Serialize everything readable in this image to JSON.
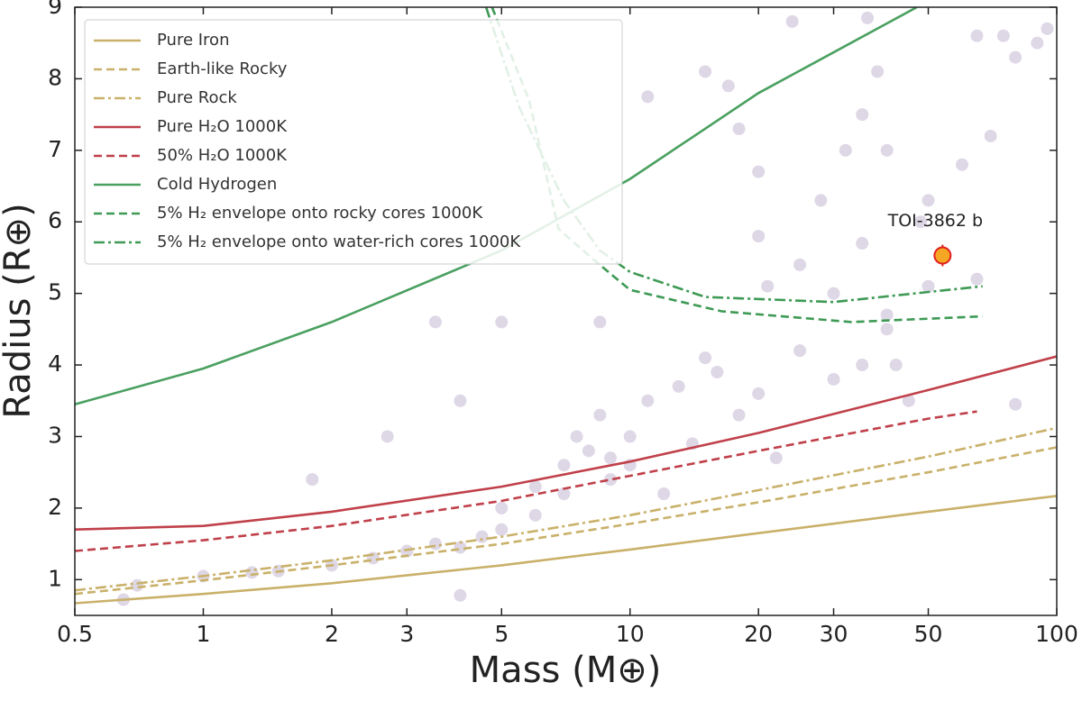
{
  "chart_data": {
    "type": "line",
    "xlabel": "Mass (M⊕)",
    "ylabel": "Radius (R⊕)",
    "xscale": "log",
    "xlim": [
      0.5,
      100
    ],
    "ylim": [
      0.5,
      9
    ],
    "xticks": [
      0.5,
      1,
      2,
      3,
      5,
      10,
      20,
      30,
      50,
      100
    ],
    "yticks": [
      1,
      2,
      3,
      4,
      5,
      6,
      7,
      8,
      9
    ],
    "legend": "upper left",
    "series": [
      {
        "name": "Pure Iron",
        "color": "#c9b16a",
        "style": "solid",
        "x": [
          0.5,
          1,
          2,
          5,
          10,
          20,
          50,
          100
        ],
        "values": [
          0.67,
          0.8,
          0.95,
          1.2,
          1.42,
          1.65,
          1.95,
          2.17
        ]
      },
      {
        "name": "Earth-like Rocky",
        "color": "#c9b16a",
        "style": "dashed",
        "x": [
          0.5,
          1,
          2,
          5,
          10,
          20,
          50,
          100
        ],
        "values": [
          0.8,
          0.99,
          1.2,
          1.5,
          1.78,
          2.08,
          2.5,
          2.85
        ]
      },
      {
        "name": "Pure Rock",
        "color": "#c9b16a",
        "style": "dashdot",
        "x": [
          0.5,
          1,
          2,
          5,
          10,
          20,
          50,
          100
        ],
        "values": [
          0.85,
          1.05,
          1.27,
          1.6,
          1.9,
          2.25,
          2.72,
          3.12
        ]
      },
      {
        "name": "Pure H₂O 1000K",
        "color": "#c0404a",
        "style": "solid",
        "x": [
          0.5,
          1,
          2,
          5,
          10,
          20,
          50,
          100
        ],
        "values": [
          1.7,
          1.75,
          1.95,
          2.3,
          2.65,
          3.05,
          3.65,
          4.12
        ]
      },
      {
        "name": "50% H₂O 1000K",
        "color": "#c0404a",
        "style": "dashed",
        "x": [
          0.5,
          1,
          2,
          5,
          10,
          20,
          50,
          65
        ],
        "values": [
          1.4,
          1.55,
          1.75,
          2.1,
          2.45,
          2.8,
          3.25,
          3.35
        ]
      },
      {
        "name": "Cold Hydrogen",
        "color": "#4aa060",
        "style": "solid",
        "x": [
          0.5,
          1,
          2,
          5,
          10,
          20,
          47
        ],
        "values": [
          3.45,
          3.95,
          4.6,
          5.6,
          6.6,
          7.8,
          9.0
        ]
      },
      {
        "name": "5% H₂ envelope onto rocky cores 1000K",
        "color": "#3e9a55",
        "style": "dashed",
        "x": [
          4.75,
          5.8,
          6.8,
          8.3,
          10,
          16.4,
          33,
          67
        ],
        "values": [
          9,
          7.7,
          5.9,
          5.45,
          5.05,
          4.75,
          4.6,
          4.68
        ]
      },
      {
        "name": "5% H₂ envelope onto water-rich cores 1000K",
        "color": "#3e9a55",
        "style": "dashdot",
        "x": [
          4.6,
          5.5,
          7,
          8.5,
          10,
          15,
          30,
          67
        ],
        "values": [
          9,
          7.6,
          6.3,
          5.6,
          5.3,
          4.95,
          4.88,
          5.1
        ]
      }
    ],
    "points": {
      "color": "#6b4a8f",
      "x": [
        0.65,
        0.7,
        1,
        1.3,
        1.5,
        2,
        2.5,
        3,
        3.5,
        4,
        4,
        4.5,
        5,
        5,
        6,
        6,
        7,
        7,
        7.5,
        8,
        8.5,
        9,
        9,
        10,
        10,
        11,
        12,
        13,
        14,
        15,
        16,
        18,
        20,
        22,
        25,
        30,
        35,
        40,
        45,
        80,
        2.7,
        1.8,
        4,
        5,
        8.5,
        3.5,
        11,
        15,
        17,
        18,
        20,
        21,
        25,
        28,
        32,
        35,
        38,
        40,
        50,
        60,
        65,
        70,
        75,
        80,
        90,
        95,
        24,
        36,
        65,
        48,
        40,
        35,
        50,
        42,
        20,
        30
      ],
      "values": [
        0.72,
        0.92,
        1.05,
        1.1,
        1.12,
        1.2,
        1.3,
        1.4,
        1.5,
        0.78,
        1.45,
        1.6,
        1.7,
        2.0,
        1.9,
        2.3,
        2.2,
        2.6,
        3.0,
        2.8,
        3.3,
        2.4,
        2.7,
        2.6,
        3.0,
        3.5,
        2.2,
        3.7,
        2.9,
        4.1,
        3.9,
        3.3,
        3.6,
        2.7,
        4.2,
        3.8,
        4.0,
        4.5,
        3.5,
        3.45,
        3.0,
        2.4,
        3.5,
        4.6,
        4.6,
        4.6,
        7.75,
        8.1,
        7.9,
        7.3,
        6.7,
        5.1,
        5.4,
        6.3,
        7.0,
        7.5,
        8.1,
        7.0,
        6.3,
        6.8,
        8.6,
        7.2,
        8.6,
        8.3,
        8.5,
        8.7,
        8.8,
        8.85,
        5.2,
        6.0,
        4.7,
        5.7,
        5.1,
        4.0,
        5.8,
        5.0
      ]
    },
    "highlight": {
      "label": "TOI-3862 b",
      "x": 54,
      "value": 5.53,
      "x_error": 2,
      "error": 0.15,
      "color": "#f5a623",
      "edge": "#e02020"
    }
  }
}
